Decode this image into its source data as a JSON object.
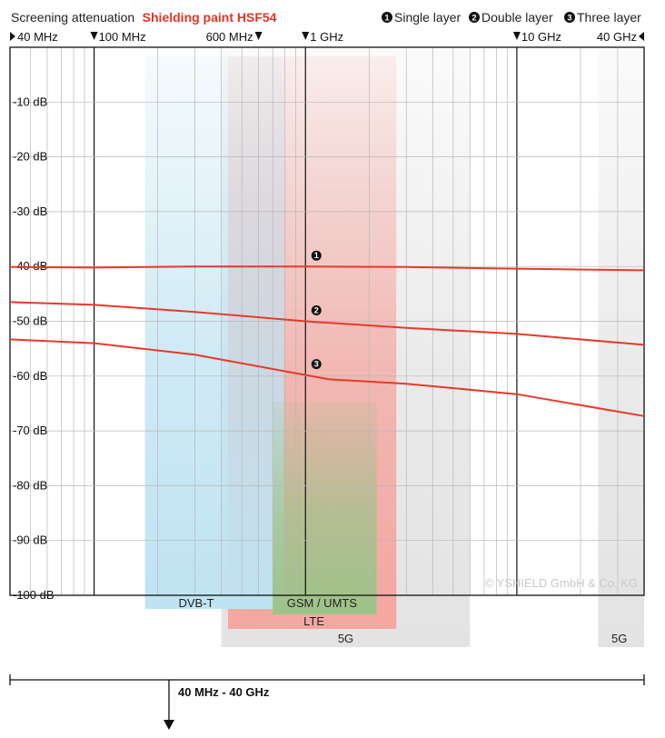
{
  "header": {
    "title_prefix": "Screening attenuation",
    "product": "Shielding paint HSF54",
    "legend": [
      {
        "num": "1",
        "label": "Single layer"
      },
      {
        "num": "2",
        "label": "Double layer"
      },
      {
        "num": "3",
        "label": "Three layer"
      }
    ]
  },
  "freq_markers": [
    {
      "label": "40 MHz",
      "freq": 40,
      "arrow": "right"
    },
    {
      "label": "100 MHz",
      "freq": 100,
      "arrow": "down"
    },
    {
      "label": "600 MHz",
      "freq": 600,
      "arrow": "down"
    },
    {
      "label": "1 GHz",
      "freq": 1000,
      "arrow": "down"
    },
    {
      "label": "10 GHz",
      "freq": 10000,
      "arrow": "down"
    },
    {
      "label": "40 GHz",
      "freq": 40000,
      "arrow": "left"
    }
  ],
  "bands": [
    {
      "label": "DVB-T",
      "from": 174,
      "to": 790,
      "color": "#bfe3f2"
    },
    {
      "label": "GSM / UMTS",
      "from": 700,
      "to": 2170,
      "color": "#9ec38a"
    },
    {
      "label": "LTE",
      "from": 430,
      "to": 2690,
      "color": "#f4a7a0"
    },
    {
      "label": "5G",
      "from": 400,
      "to": 6000,
      "color": "#e3e3e3"
    },
    {
      "label": "5G",
      "from": 24250,
      "to": 40000,
      "color": "#e3e3e3"
    }
  ],
  "copyright": "© YSHIELD GmbH & Co. KG",
  "range_label": "40 MHz - 40 GHz",
  "chart_data": {
    "type": "line",
    "title": "Screening attenuation Shielding paint HSF54",
    "x_scale": "log",
    "x_unit": "MHz",
    "xlim": [
      40,
      40000
    ],
    "ylim": [
      -100,
      0
    ],
    "y_unit": "dB",
    "y_ticks": [
      -10,
      -20,
      -30,
      -40,
      -50,
      -60,
      -70,
      -80,
      -90,
      -100
    ],
    "y_tick_labels": [
      "-10 dB",
      "-20 dB",
      "-30 dB",
      "-40 dB",
      "-50 dB",
      "-60 dB",
      "-70 dB",
      "-80 dB",
      "-90 dB",
      "-100 dB"
    ],
    "grid": true,
    "series": [
      {
        "name": "Single layer",
        "marker": "1",
        "marker_at": 1000,
        "color": "#e8392b",
        "x": [
          40,
          100,
          300,
          1000,
          3000,
          10000,
          40000
        ],
        "y": [
          -40.1,
          -40.2,
          -40.0,
          -40.0,
          -40.1,
          -40.4,
          -40.7
        ]
      },
      {
        "name": "Double layer",
        "marker": "2",
        "marker_at": 1000,
        "color": "#e8392b",
        "x": [
          40,
          100,
          300,
          1000,
          3000,
          10000,
          40000
        ],
        "y": [
          -46.5,
          -47.0,
          -48.3,
          -50.0,
          -51.2,
          -52.3,
          -54.3
        ]
      },
      {
        "name": "Three layer",
        "marker": "3",
        "marker_at": 1000,
        "color": "#e8392b",
        "x": [
          40,
          100,
          300,
          1000,
          1300,
          3000,
          10000,
          40000
        ],
        "y": [
          -53.3,
          -54.0,
          -56.1,
          -59.8,
          -60.6,
          -61.4,
          -63.3,
          -67.3
        ]
      }
    ]
  }
}
